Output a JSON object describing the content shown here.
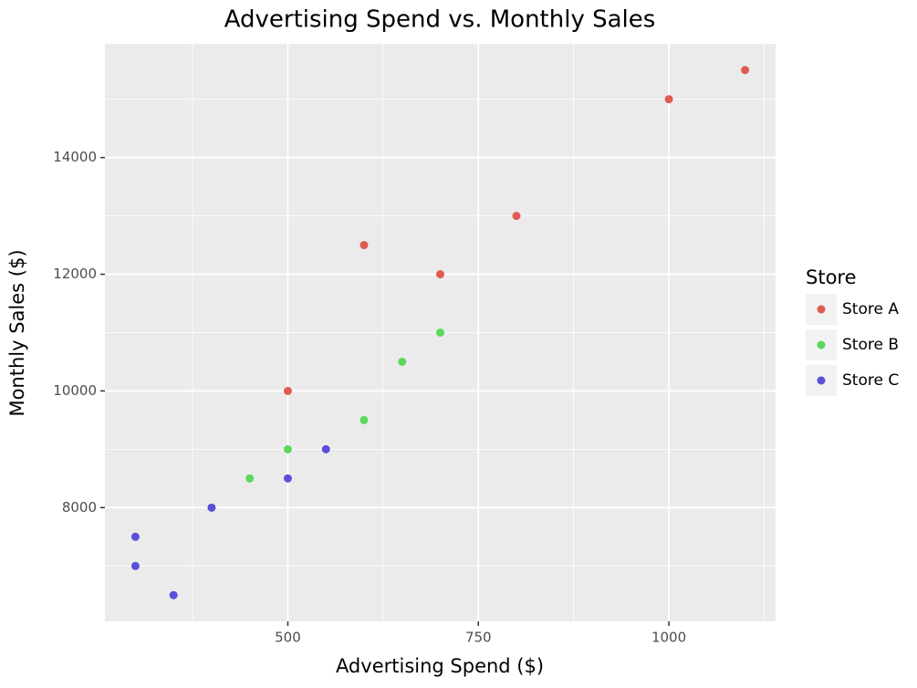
{
  "chart_data": {
    "type": "scatter",
    "title": "Advertising Spend vs. Monthly Sales",
    "x_label": "Advertising Spend ($)",
    "y_label": "Monthly Sales ($)",
    "legend_title": "Store",
    "legend_position": "right",
    "grid": true,
    "xlim": [
      260,
      1140
    ],
    "xticks": [
      500,
      750,
      1000
    ],
    "ylim": [
      6050,
      15950
    ],
    "yticks": [
      8000,
      10000,
      12000,
      14000
    ],
    "series": [
      {
        "name": "Store A",
        "color": "#e05b52",
        "x": [
          500,
          600,
          700,
          800,
          1000,
          1100
        ],
        "values": [
          10000,
          12500,
          12000,
          13000,
          15000,
          15500
        ]
      },
      {
        "name": "Store B",
        "color": "#5bd75b",
        "x": [
          450,
          500,
          600,
          650,
          700
        ],
        "values": [
          8500,
          9000,
          9500,
          10500,
          11000
        ]
      },
      {
        "name": "Store C",
        "color": "#5a4fd8",
        "x": [
          300,
          300,
          350,
          400,
          500,
          550
        ],
        "values": [
          7500,
          7000,
          6500,
          8000,
          8500,
          9000
        ]
      }
    ]
  }
}
